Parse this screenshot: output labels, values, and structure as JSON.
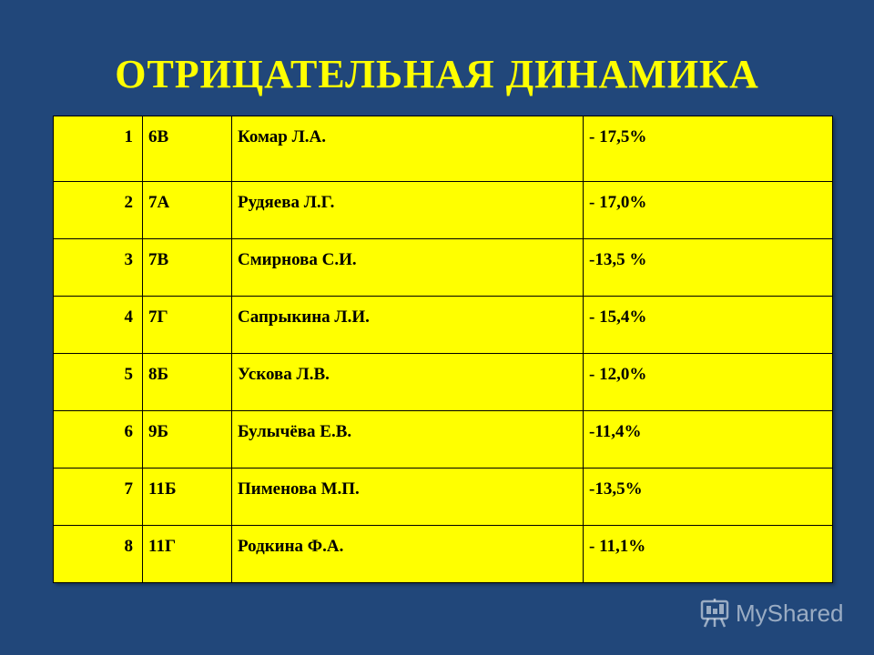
{
  "slide": {
    "title": "ОТРИЦАТЕЛЬНАЯ ДИНАМИКА"
  },
  "table": {
    "rows": [
      {
        "num": "1",
        "class": "6В",
        "name": "Комар  Л.А.",
        "value": "- 17,5%"
      },
      {
        "num": "2",
        "class": "7А",
        "name": "Рудяева  Л.Г.",
        "value": "- 17,0%"
      },
      {
        "num": "3",
        "class": "7В",
        "name": "Смирнова С.И.",
        "value": "-13,5 %"
      },
      {
        "num": "4",
        "class": "7Г",
        "name": "Сапрыкина Л.И.",
        "value": "- 15,4%"
      },
      {
        "num": "5",
        "class": "8Б",
        "name": "Ускова Л.В.",
        "value": "- 12,0%"
      },
      {
        "num": "6",
        "class": "9Б",
        "name": "Булычёва Е.В.",
        "value": "-11,4%"
      },
      {
        "num": "7",
        "class": "11Б",
        "name": "Пименова М.П.",
        "value": "-13,5%"
      },
      {
        "num": "8",
        "class": "11Г",
        "name": "Родкина Ф.А.",
        "value": "- 11,1%"
      }
    ]
  },
  "watermark": {
    "text": "MyShared",
    "icon": "presentation-board-icon"
  },
  "colors": {
    "background": "#21477a",
    "title": "#ffff00",
    "table_fill": "#ffff00",
    "table_text": "#000000"
  }
}
